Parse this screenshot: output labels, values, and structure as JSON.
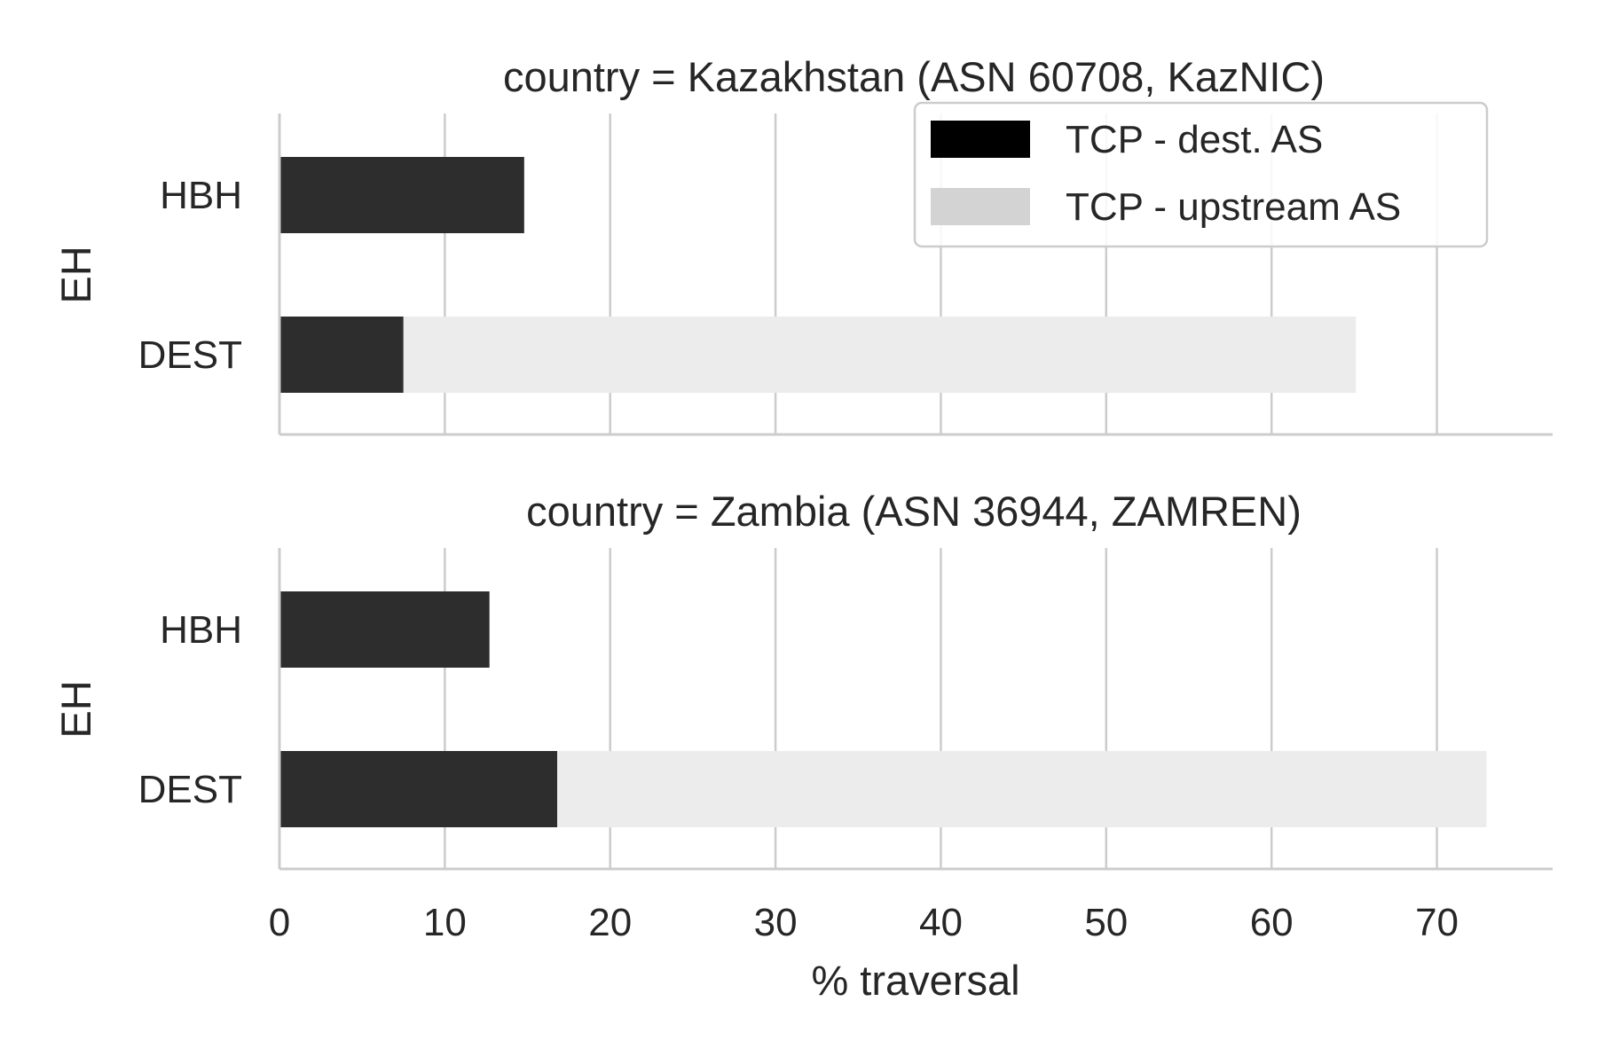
{
  "chart_data": {
    "type": "bar",
    "orientation": "horizontal",
    "stacked": true,
    "xlabel": "% traversal",
    "xlim": [
      0,
      77
    ],
    "xticks": [
      0,
      10,
      20,
      30,
      40,
      50,
      60,
      70
    ],
    "grid": "vertical",
    "legend": {
      "placement": "top-right",
      "entries": [
        {
          "name": "TCP - dest. AS",
          "color": "#000000"
        },
        {
          "name": "TCP - upstream AS",
          "color": "#d3d3d3"
        }
      ]
    },
    "panels": [
      {
        "title": "country = Kazakhstan (ASN 60708, KazNIC)",
        "ylabel": "EH",
        "categories": [
          "HBH",
          "DEST"
        ],
        "series": [
          {
            "name": "TCP - dest. AS",
            "color": "#2d2d2d",
            "values": [
              14.8,
              7.5
            ]
          },
          {
            "name": "TCP - upstream AS",
            "color": "#ececec",
            "values": [
              0,
              57.6
            ]
          }
        ]
      },
      {
        "title": "country = Zambia (ASN 36944, ZAMREN)",
        "ylabel": "EH",
        "categories": [
          "HBH",
          "DEST"
        ],
        "series": [
          {
            "name": "TCP - dest. AS",
            "color": "#2d2d2d",
            "values": [
              12.7,
              16.8
            ]
          },
          {
            "name": "TCP - upstream AS",
            "color": "#ececec",
            "values": [
              0,
              56.2
            ]
          }
        ]
      }
    ]
  }
}
